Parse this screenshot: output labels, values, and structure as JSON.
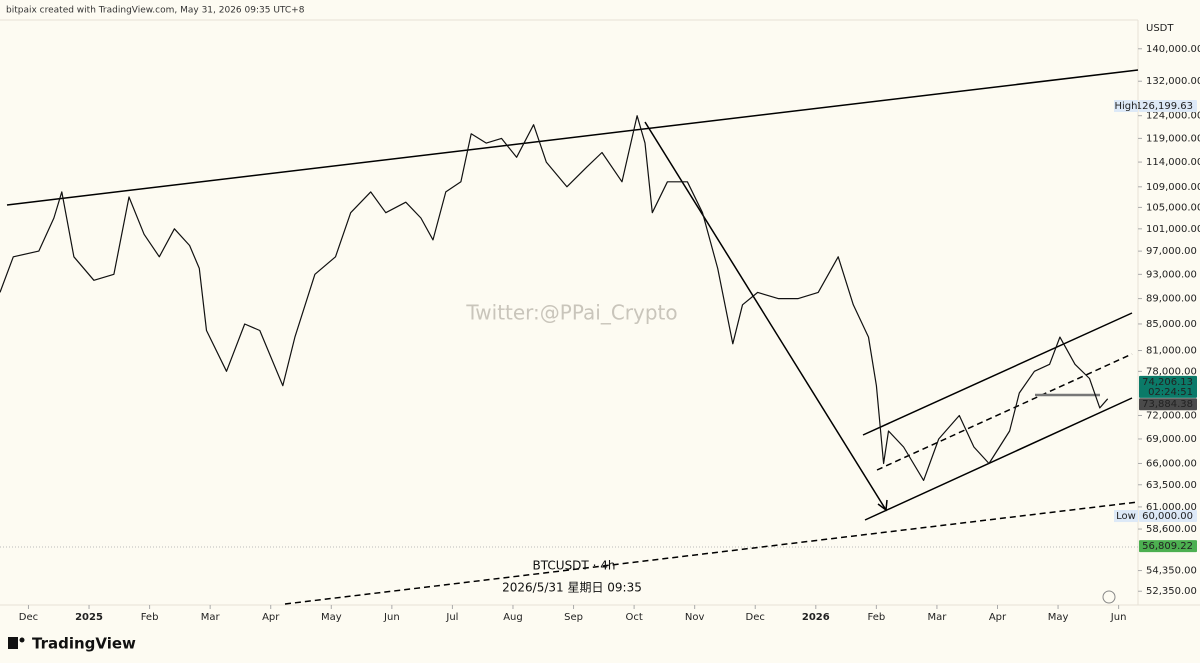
{
  "header": "bitpaix created with TradingView.com, May 31, 2026 09:35 UTC+8",
  "watermark": "Twitter:@PPai_Crypto",
  "symbol_label": "BTCUSDT · 4h",
  "time_label": "2026/5/31 星期日 09:35",
  "logo": "TradingView",
  "chart_data": {
    "type": "line",
    "currency": "USDT",
    "log_scale": true,
    "color": "#111111",
    "x": [
      -0.47,
      -0.25,
      0.17,
      0.42,
      0.55,
      0.75,
      1.08,
      1.41,
      1.66,
      1.91,
      2.16,
      2.41,
      2.66,
      2.82,
      2.94,
      3.27,
      3.57,
      3.82,
      4.2,
      4.4,
      4.73,
      5.07,
      5.32,
      5.65,
      5.9,
      6.23,
      6.48,
      6.68,
      6.89,
      7.14,
      7.31,
      7.56,
      7.81,
      8.06,
      8.34,
      8.55,
      8.89,
      9.22,
      9.47,
      9.8,
      10.05,
      10.18,
      10.3,
      10.55,
      10.88,
      11.13,
      11.38,
      11.63,
      11.79,
      12.04,
      12.38,
      12.71,
      13.04,
      13.37,
      13.62,
      13.87,
      14.0,
      14.12,
      14.2,
      14.45,
      14.78,
      15.03,
      15.37,
      15.61,
      15.86,
      16.2,
      16.36,
      16.61,
      16.86,
      17.03,
      17.28,
      17.52,
      17.69,
      17.82
    ],
    "series": [
      {
        "name": "BTCUSDT",
        "values": [
          90000,
          96000,
          97000,
          103000,
          108000,
          96000,
          92000,
          93000,
          107000,
          100000,
          96000,
          101000,
          98000,
          94000,
          84000,
          78000,
          85000,
          84000,
          76000,
          83000,
          93000,
          96000,
          104000,
          108000,
          104000,
          106000,
          103000,
          99000,
          108000,
          110000,
          120000,
          118000,
          119000,
          115000,
          122000,
          114000,
          109000,
          113000,
          116000,
          110000,
          124000,
          118000,
          104000,
          110000,
          110000,
          104000,
          94000,
          82000,
          88000,
          90000,
          89000,
          89000,
          90000,
          96000,
          88000,
          83000,
          76000,
          66000,
          70000,
          68000,
          64000,
          69000,
          72000,
          68000,
          66000,
          70000,
          75000,
          78000,
          79000,
          83000,
          79000,
          77000,
          73000,
          74206.13
        ]
      }
    ],
    "xlim": [
      -0.47,
      18.32
    ],
    "xticks": [
      {
        "value": 0,
        "label": "Dec"
      },
      {
        "value": 1,
        "label": "2025"
      },
      {
        "value": 2,
        "label": "Feb"
      },
      {
        "value": 3,
        "label": "Mar"
      },
      {
        "value": 4,
        "label": "Apr"
      },
      {
        "value": 5,
        "label": "May"
      },
      {
        "value": 6,
        "label": "Jun"
      },
      {
        "value": 7,
        "label": "Jul"
      },
      {
        "value": 8,
        "label": "Aug"
      },
      {
        "value": 9,
        "label": "Sep"
      },
      {
        "value": 10,
        "label": "Oct"
      },
      {
        "value": 11,
        "label": "Nov"
      },
      {
        "value": 12,
        "label": "Dec"
      },
      {
        "value": 13,
        "label": "2026"
      },
      {
        "value": 14,
        "label": "Feb"
      },
      {
        "value": 15,
        "label": "Mar"
      },
      {
        "value": 16,
        "label": "Apr"
      },
      {
        "value": 17,
        "label": "May"
      },
      {
        "value": 18,
        "label": "Jun"
      }
    ],
    "ylim": [
      51060,
      147500
    ],
    "yticks": [
      {
        "value": 140000,
        "label": "140,000.00"
      },
      {
        "value": 132000,
        "label": "132,000.00"
      },
      {
        "value": 124000,
        "label": "124,000.00"
      },
      {
        "value": 119000,
        "label": "119,000.00"
      },
      {
        "value": 114000,
        "label": "114,000.00"
      },
      {
        "value": 109000,
        "label": "109,000.00"
      },
      {
        "value": 105000,
        "label": "105,000.00"
      },
      {
        "value": 101000,
        "label": "101,000.00"
      },
      {
        "value": 97000,
        "label": "97,000.00"
      },
      {
        "value": 93000,
        "label": "93,000.00"
      },
      {
        "value": 89000,
        "label": "89,000.00"
      },
      {
        "value": 85000,
        "label": "85,000.00"
      },
      {
        "value": 81000,
        "label": "81,000.00"
      },
      {
        "value": 78000,
        "label": "78,000.00"
      },
      {
        "value": 72000,
        "label": "72,000.00"
      },
      {
        "value": 69000,
        "label": "69,000.00"
      },
      {
        "value": 66000,
        "label": "66,000.00"
      },
      {
        "value": 63500,
        "label": "63,500.00"
      },
      {
        "value": 61000,
        "label": "61,000.00"
      },
      {
        "value": 58600,
        "label": "58,600.00"
      },
      {
        "value": 54350,
        "label": "54,350.00"
      },
      {
        "value": 52350,
        "label": "52,350.00"
      }
    ],
    "price_labels": [
      {
        "tag": "High",
        "value": 126199.63,
        "label": "126,199.63",
        "color": "#dde9f7",
        "text_color": "#1a2a3a"
      },
      {
        "value": 74206.13,
        "label": "74,206.13",
        "countdown": "02:24:51",
        "color": "#0b7a68",
        "text_color": "#ffffff"
      },
      {
        "value": 73884.38,
        "label": "73,884.38",
        "color": "#4a4a4a",
        "text_color": "#ffffff"
      },
      {
        "tag": "Low",
        "value": 60000,
        "label": "60,000.00",
        "color": "#dde9f7",
        "text_color": "#1a2a3a"
      },
      {
        "value": 56809.22,
        "label": "56,809.22",
        "color": "#4caf50",
        "text_color": "#ffffff"
      }
    ]
  }
}
